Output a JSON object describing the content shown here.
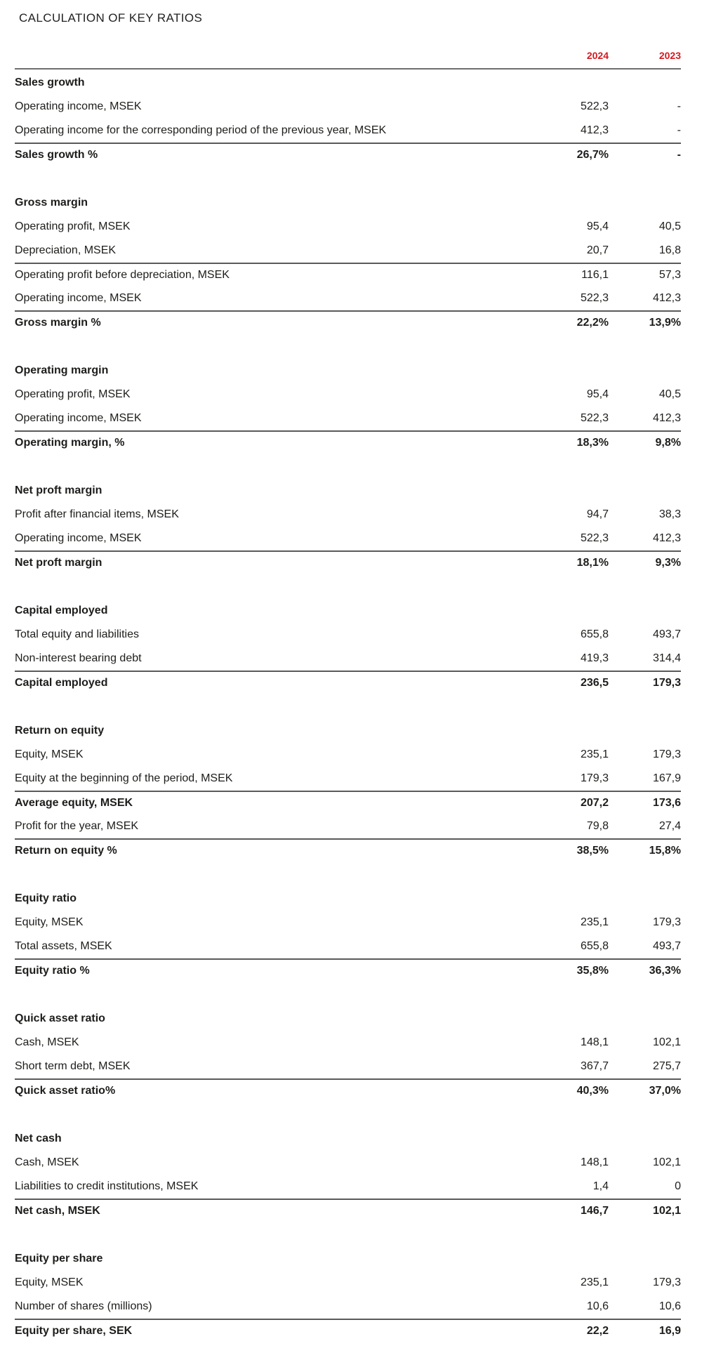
{
  "title": "CALCULATION OF KEY RATIOS",
  "columns": [
    "2024",
    "2023"
  ],
  "colors": {
    "accent_red": "#d6181f",
    "text": "#1d1d1b",
    "rule_gray": "#5a5a5a"
  },
  "sections": [
    {
      "heading": "Sales growth",
      "rows": [
        {
          "label": "Operating income, MSEK",
          "v2024": "522,3",
          "v2023": "-",
          "bold": false,
          "rule": false
        },
        {
          "label": "Operating income for the corresponding period of the previous year, MSEK",
          "v2024": "412,3",
          "v2023": "-",
          "bold": false,
          "rule": false
        },
        {
          "label": "Sales growth %",
          "v2024": "26,7%",
          "v2023": "-",
          "bold": true,
          "rule": true
        }
      ]
    },
    {
      "heading": "Gross margin",
      "rows": [
        {
          "label": "Operating profit, MSEK",
          "v2024": "95,4",
          "v2023": "40,5",
          "bold": false,
          "rule": false
        },
        {
          "label": "Depreciation, MSEK",
          "v2024": "20,7",
          "v2023": "16,8",
          "bold": false,
          "rule": false
        },
        {
          "label": "Operating profit before depreciation, MSEK",
          "v2024": "116,1",
          "v2023": "57,3",
          "bold": false,
          "rule": true
        },
        {
          "label": "Operating income, MSEK",
          "v2024": "522,3",
          "v2023": "412,3",
          "bold": false,
          "rule": false
        },
        {
          "label": "Gross margin %",
          "v2024": "22,2%",
          "v2023": "13,9%",
          "bold": true,
          "rule": true
        }
      ]
    },
    {
      "heading": "Operating margin",
      "rows": [
        {
          "label": "Operating profit, MSEK",
          "v2024": "95,4",
          "v2023": "40,5",
          "bold": false,
          "rule": false
        },
        {
          "label": "Operating income, MSEK",
          "v2024": "522,3",
          "v2023": "412,3",
          "bold": false,
          "rule": false
        },
        {
          "label": "Operating margin, %",
          "v2024": "18,3%",
          "v2023": "9,8%",
          "bold": true,
          "rule": true
        }
      ]
    },
    {
      "heading": "Net proft margin",
      "rows": [
        {
          "label": "Profit after financial items, MSEK",
          "v2024": "94,7",
          "v2023": "38,3",
          "bold": false,
          "rule": false
        },
        {
          "label": "Operating income, MSEK",
          "v2024": "522,3",
          "v2023": "412,3",
          "bold": false,
          "rule": false
        },
        {
          "label": "Net proft margin",
          "v2024": "18,1%",
          "v2023": "9,3%",
          "bold": true,
          "rule": true
        }
      ]
    },
    {
      "heading": "Capital employed",
      "rows": [
        {
          "label": "Total equity and liabilities",
          "v2024": "655,8",
          "v2023": "493,7",
          "bold": false,
          "rule": false
        },
        {
          "label": "Non-interest bearing debt",
          "v2024": "419,3",
          "v2023": "314,4",
          "bold": false,
          "rule": false
        },
        {
          "label": "Capital employed",
          "v2024": "236,5",
          "v2023": "179,3",
          "bold": true,
          "rule": true
        }
      ]
    },
    {
      "heading": "Return on equity",
      "rows": [
        {
          "label": "Equity, MSEK",
          "v2024": "235,1",
          "v2023": "179,3",
          "bold": false,
          "rule": false
        },
        {
          "label": "Equity at the beginning of the period, MSEK",
          "v2024": "179,3",
          "v2023": "167,9",
          "bold": false,
          "rule": false
        },
        {
          "label": "Average equity, MSEK",
          "v2024": "207,2",
          "v2023": "173,6",
          "bold": true,
          "rule": true
        },
        {
          "label": "Profit for the year, MSEK",
          "v2024": "79,8",
          "v2023": "27,4",
          "bold": false,
          "rule": false
        },
        {
          "label": "Return on equity %",
          "v2024": "38,5%",
          "v2023": "15,8%",
          "bold": true,
          "rule": true
        }
      ]
    },
    {
      "heading": "Equity ratio",
      "rows": [
        {
          "label": "Equity, MSEK",
          "v2024": "235,1",
          "v2023": "179,3",
          "bold": false,
          "rule": false
        },
        {
          "label": "Total assets, MSEK",
          "v2024": "655,8",
          "v2023": "493,7",
          "bold": false,
          "rule": false
        },
        {
          "label": "Equity ratio %",
          "v2024": "35,8%",
          "v2023": "36,3%",
          "bold": true,
          "rule": true
        }
      ]
    },
    {
      "heading": "Quick asset ratio",
      "rows": [
        {
          "label": "Cash, MSEK",
          "v2024": "148,1",
          "v2023": "102,1",
          "bold": false,
          "rule": false
        },
        {
          "label": "Short term debt, MSEK",
          "v2024": "367,7",
          "v2023": "275,7",
          "bold": false,
          "rule": false
        },
        {
          "label": "Quick asset ratio%",
          "v2024": "40,3%",
          "v2023": "37,0%",
          "bold": true,
          "rule": true
        }
      ]
    },
    {
      "heading": "Net cash",
      "rows": [
        {
          "label": "Cash, MSEK",
          "v2024": "148,1",
          "v2023": "102,1",
          "bold": false,
          "rule": false
        },
        {
          "label": "Liabilities to credit institutions, MSEK",
          "v2024": "1,4",
          "v2023": "0",
          "bold": false,
          "rule": false
        },
        {
          "label": "Net cash, MSEK",
          "v2024": "146,7",
          "v2023": "102,1",
          "bold": true,
          "rule": true
        }
      ]
    },
    {
      "heading": "Equity per share",
      "rows": [
        {
          "label": "Equity, MSEK",
          "v2024": "235,1",
          "v2023": "179,3",
          "bold": false,
          "rule": false
        },
        {
          "label": "Number of shares (millions)",
          "v2024": "10,6",
          "v2023": "10,6",
          "bold": false,
          "rule": false
        },
        {
          "label": "Equity per share, SEK",
          "v2024": "22,2",
          "v2023": "16,9",
          "bold": true,
          "rule": true
        }
      ]
    }
  ]
}
